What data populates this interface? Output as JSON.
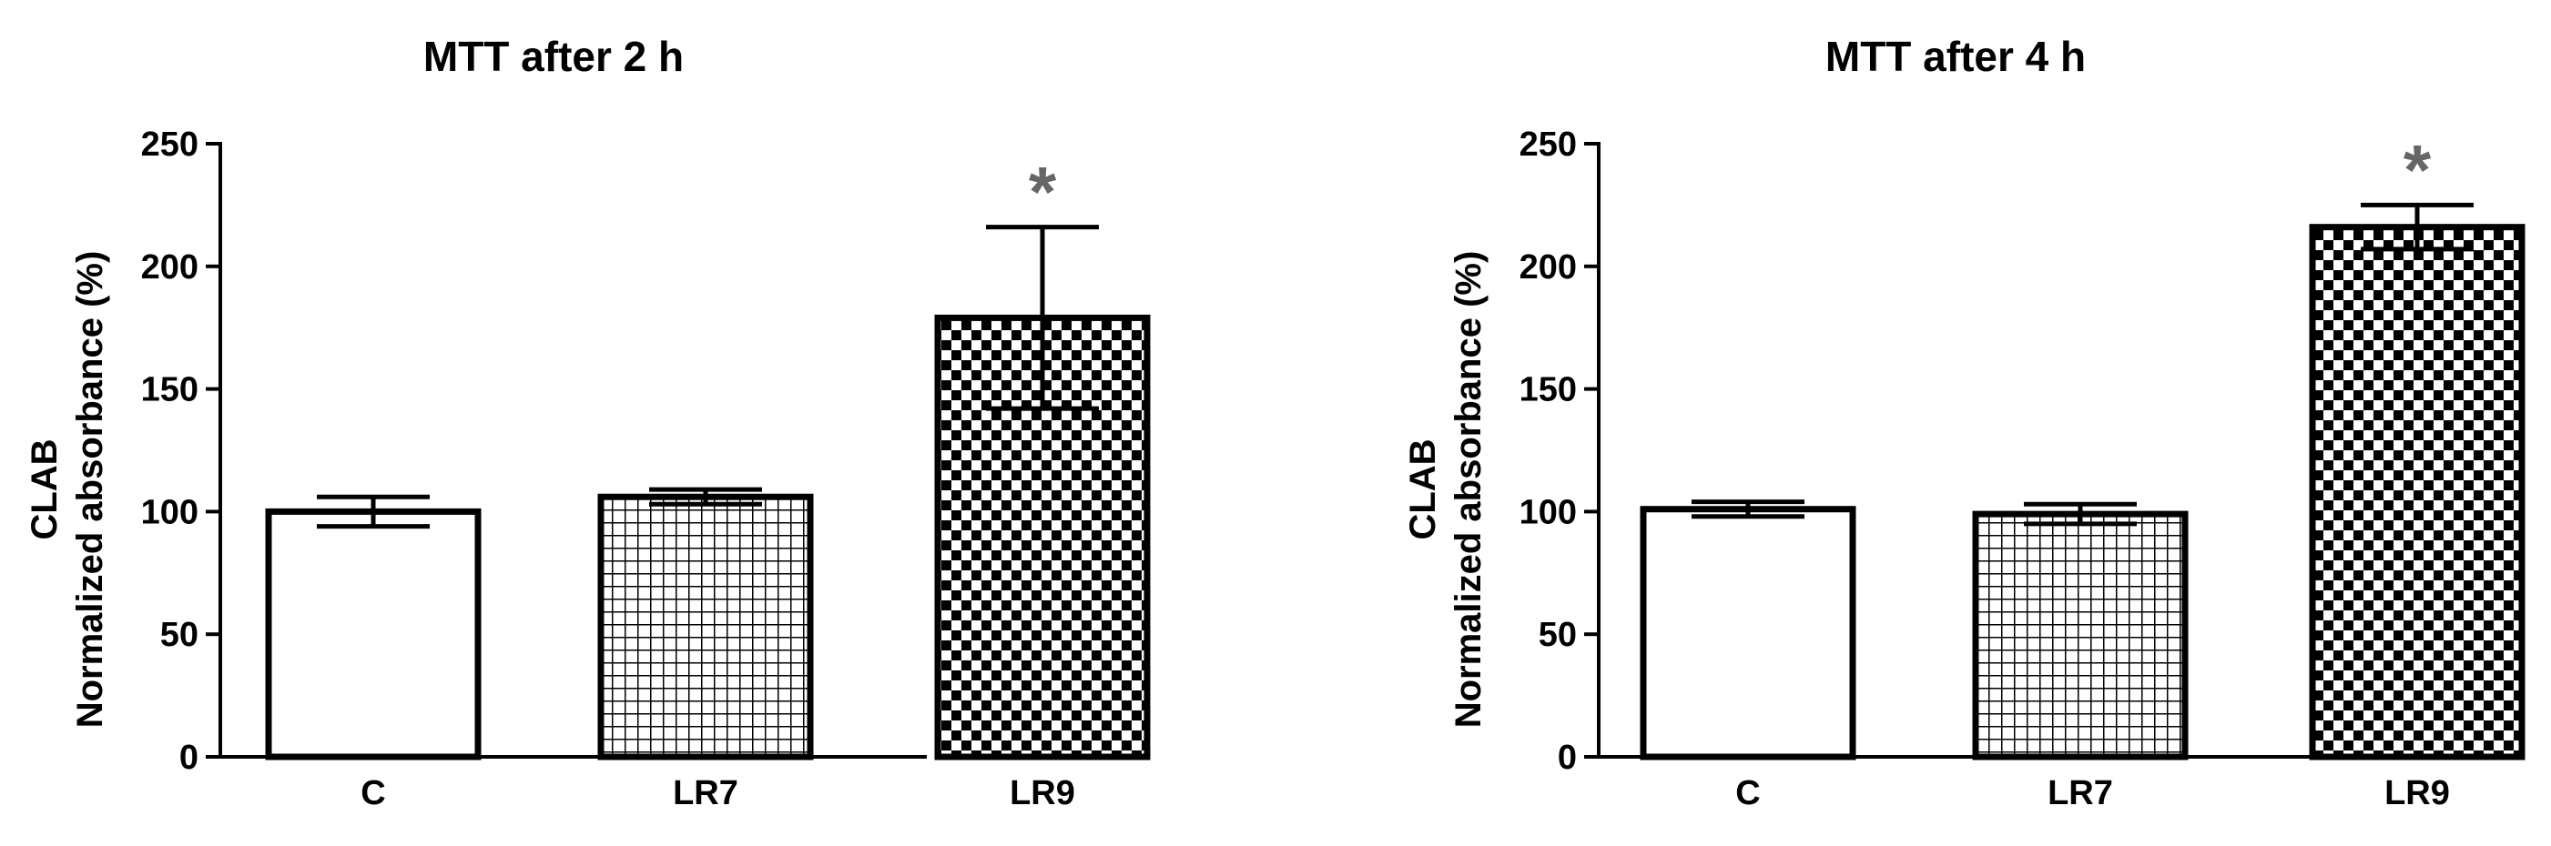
{
  "chart_data": [
    {
      "type": "bar",
      "title": "MTT after 2 h",
      "ylabel_line1": "CLAB",
      "ylabel_line2": "Normalized absorbance (%)",
      "xlabel": "",
      "categories": [
        "C",
        "LR7",
        "LR9"
      ],
      "values": [
        100,
        106,
        179
      ],
      "errors": [
        6,
        3,
        37
      ],
      "annotations": [
        {
          "category": "LR9",
          "text": "*"
        }
      ],
      "ylim": [
        0,
        250
      ],
      "yticks": [
        0,
        50,
        100,
        150,
        200,
        250
      ],
      "patterns": [
        "none",
        "grid",
        "checker"
      ],
      "grid": false,
      "legend": "none"
    },
    {
      "type": "bar",
      "title": "MTT after 4 h",
      "ylabel_line1": "CLAB",
      "ylabel_line2": "Normalized absorbance (%)",
      "xlabel": "",
      "categories": [
        "C",
        "LR7",
        "LR9"
      ],
      "values": [
        101,
        99,
        216
      ],
      "errors": [
        3,
        4,
        9
      ],
      "annotations": [
        {
          "category": "LR9",
          "text": "*"
        }
      ],
      "ylim": [
        0,
        250
      ],
      "yticks": [
        0,
        50,
        100,
        150,
        200,
        250
      ],
      "patterns": [
        "none",
        "grid",
        "checker"
      ],
      "grid": false,
      "legend": "none"
    }
  ],
  "colors": {
    "ink": "#000000",
    "background": "#ffffff",
    "annotation": "#666666"
  }
}
